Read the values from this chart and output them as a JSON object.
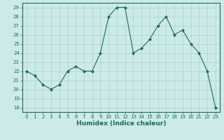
{
  "x": [
    0,
    1,
    2,
    3,
    4,
    5,
    6,
    7,
    8,
    9,
    10,
    11,
    12,
    13,
    14,
    15,
    16,
    17,
    18,
    19,
    20,
    21,
    22,
    23
  ],
  "y": [
    22,
    21.5,
    20.5,
    20,
    20.5,
    22,
    22.5,
    22,
    22,
    24,
    28,
    29,
    29,
    24,
    24.5,
    25.5,
    27,
    28,
    26,
    26.5,
    25,
    24,
    22,
    18
  ],
  "line_color": "#1a6b5e",
  "marker_color": "#1a6b5e",
  "bg_color": "#cceae8",
  "grid_color": "#aad4d0",
  "xlabel": "Humidex (Indice chaleur)",
  "xlabel_color": "#1a6b5e",
  "tick_color": "#1a6b5e",
  "spine_color": "#1a6b5e",
  "ylim": [
    17.5,
    29.5
  ],
  "xlim": [
    -0.5,
    23.5
  ],
  "yticks": [
    18,
    19,
    20,
    21,
    22,
    23,
    24,
    25,
    26,
    27,
    28,
    29
  ],
  "xticks": [
    0,
    1,
    2,
    3,
    4,
    5,
    6,
    7,
    8,
    9,
    10,
    11,
    12,
    13,
    14,
    15,
    16,
    17,
    18,
    19,
    20,
    21,
    22,
    23
  ],
  "xtick_labels": [
    "0",
    "1",
    "2",
    "3",
    "4",
    "5",
    "6",
    "7",
    "8",
    "9",
    "10",
    "11",
    "12",
    "13",
    "14",
    "15",
    "16",
    "17",
    "18",
    "19",
    "20",
    "21",
    "22",
    "23"
  ]
}
